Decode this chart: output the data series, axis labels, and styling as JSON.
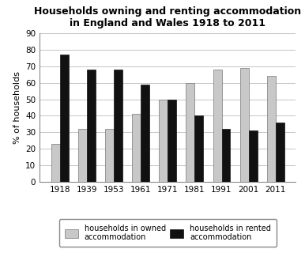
{
  "title": "Households owning and renting accommodation\nin England and Wales 1918 to 2011",
  "years": [
    "1918",
    "1939",
    "1953",
    "1961",
    "1971",
    "1981",
    "1991",
    "2001",
    "2011"
  ],
  "owned": [
    23,
    32,
    32,
    41,
    50,
    60,
    68,
    69,
    64
  ],
  "rented": [
    77,
    68,
    68,
    59,
    50,
    40,
    32,
    31,
    36
  ],
  "owned_color": "#c8c8c8",
  "rented_color": "#111111",
  "ylabel": "% of households",
  "ylim": [
    0,
    90
  ],
  "yticks": [
    0,
    10,
    20,
    30,
    40,
    50,
    60,
    70,
    80,
    90
  ],
  "bar_width": 0.32,
  "legend_owned": "households in owned\naccommodation",
  "legend_rented": "households in rented\naccommodation",
  "title_fontsize": 9.0,
  "axis_fontsize": 8.0,
  "tick_fontsize": 7.5,
  "legend_fontsize": 7.0,
  "background_color": "#ffffff",
  "grid_color": "#bbbbbb"
}
